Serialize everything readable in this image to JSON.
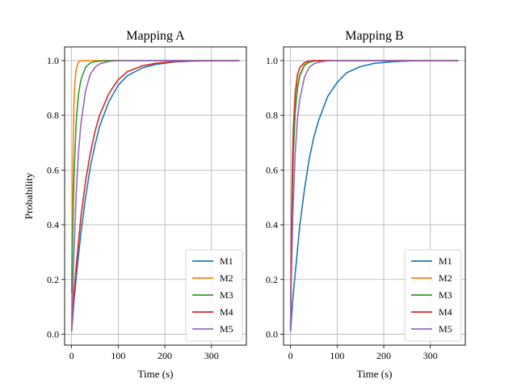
{
  "chart_data": [
    {
      "type": "line",
      "title": "Mapping A",
      "xlabel": "Time (s)",
      "ylabel": "Probability",
      "xlim": [
        -15,
        375
      ],
      "ylim": [
        -0.04,
        1.05
      ],
      "xticks": [
        0,
        100,
        200,
        300
      ],
      "yticks": [
        0.0,
        0.2,
        0.4,
        0.6,
        0.8,
        1.0
      ],
      "grid": true,
      "legend_position": "lower-right",
      "series": [
        {
          "name": "M1",
          "color": "#1f77b4",
          "x": [
            0,
            5,
            10,
            20,
            30,
            40,
            50,
            60,
            80,
            100,
            120,
            150,
            180,
            220,
            260,
            300,
            360
          ],
          "y": [
            0.01,
            0.12,
            0.21,
            0.37,
            0.5,
            0.61,
            0.69,
            0.76,
            0.85,
            0.91,
            0.945,
            0.972,
            0.986,
            0.995,
            0.998,
            0.999,
            1.0
          ]
        },
        {
          "name": "M2",
          "color": "#ff7f0e",
          "x": [
            0,
            1,
            2,
            3,
            5,
            7,
            10,
            15,
            20,
            30,
            50,
            100,
            200,
            360
          ],
          "y": [
            0.01,
            0.3,
            0.51,
            0.66,
            0.84,
            0.92,
            0.97,
            0.995,
            0.999,
            1.0,
            1.0,
            1.0,
            1.0,
            1.0
          ]
        },
        {
          "name": "M3",
          "color": "#2ca02c",
          "x": [
            0,
            2,
            5,
            10,
            15,
            20,
            30,
            40,
            50,
            60,
            80,
            100,
            150,
            200,
            360
          ],
          "y": [
            0.15,
            0.35,
            0.57,
            0.78,
            0.88,
            0.93,
            0.976,
            0.991,
            0.996,
            0.998,
            1.0,
            1.0,
            1.0,
            1.0,
            1.0
          ]
        },
        {
          "name": "M4",
          "color": "#d62728",
          "x": [
            0,
            5,
            10,
            20,
            30,
            40,
            50,
            60,
            80,
            100,
            120,
            150,
            180,
            220,
            260,
            300,
            360
          ],
          "y": [
            0.01,
            0.14,
            0.25,
            0.43,
            0.56,
            0.66,
            0.74,
            0.8,
            0.88,
            0.93,
            0.96,
            0.98,
            0.99,
            0.996,
            0.999,
            1.0,
            1.0
          ]
        },
        {
          "name": "M5",
          "color": "#9467bd",
          "x": [
            0,
            2,
            5,
            10,
            15,
            20,
            30,
            40,
            50,
            60,
            80,
            100,
            150,
            200,
            360
          ],
          "y": [
            0.01,
            0.12,
            0.3,
            0.52,
            0.67,
            0.77,
            0.89,
            0.95,
            0.975,
            0.988,
            0.997,
            1.0,
            1.0,
            1.0,
            1.0
          ]
        }
      ]
    },
    {
      "type": "line",
      "title": "Mapping B",
      "xlabel": "Time (s)",
      "ylabel": "",
      "xlim": [
        -15,
        375
      ],
      "ylim": [
        -0.04,
        1.05
      ],
      "xticks": [
        0,
        100,
        200,
        300
      ],
      "yticks": [
        0.0,
        0.2,
        0.4,
        0.6,
        0.8,
        1.0
      ],
      "grid": true,
      "legend_position": "lower-right",
      "series": [
        {
          "name": "M1",
          "color": "#1f77b4",
          "x": [
            0,
            5,
            10,
            20,
            30,
            40,
            50,
            60,
            80,
            100,
            120,
            150,
            180,
            220,
            260,
            300,
            360
          ],
          "y": [
            0.01,
            0.13,
            0.22,
            0.4,
            0.53,
            0.64,
            0.72,
            0.78,
            0.87,
            0.92,
            0.955,
            0.978,
            0.99,
            0.996,
            0.999,
            1.0,
            1.0
          ]
        },
        {
          "name": "M2",
          "color": "#ff7f0e",
          "x": [
            0,
            2,
            4,
            6,
            10,
            15,
            20,
            30,
            40,
            50,
            60,
            80,
            100,
            200,
            360
          ],
          "y": [
            0.02,
            0.35,
            0.55,
            0.68,
            0.82,
            0.91,
            0.95,
            0.985,
            0.995,
            0.998,
            1.0,
            1.0,
            1.0,
            1.0,
            1.0
          ]
        },
        {
          "name": "M3",
          "color": "#2ca02c",
          "x": [
            0,
            2,
            4,
            6,
            10,
            15,
            20,
            30,
            40,
            50,
            60,
            80,
            100,
            200,
            360
          ],
          "y": [
            0.02,
            0.33,
            0.53,
            0.66,
            0.81,
            0.9,
            0.945,
            0.982,
            0.994,
            0.998,
            1.0,
            1.0,
            1.0,
            1.0,
            1.0
          ]
        },
        {
          "name": "M4",
          "color": "#d62728",
          "x": [
            0,
            2,
            4,
            6,
            10,
            15,
            20,
            30,
            40,
            50,
            60,
            80,
            100,
            200,
            360
          ],
          "y": [
            0.02,
            0.4,
            0.62,
            0.75,
            0.88,
            0.95,
            0.975,
            0.993,
            0.998,
            1.0,
            1.0,
            1.0,
            1.0,
            1.0,
            1.0
          ]
        },
        {
          "name": "M5",
          "color": "#9467bd",
          "x": [
            0,
            2,
            5,
            10,
            15,
            20,
            30,
            40,
            50,
            60,
            80,
            100,
            150,
            200,
            360
          ],
          "y": [
            0.02,
            0.22,
            0.44,
            0.66,
            0.79,
            0.86,
            0.94,
            0.975,
            0.988,
            0.994,
            0.999,
            1.0,
            1.0,
            1.0,
            1.0
          ]
        }
      ]
    }
  ]
}
